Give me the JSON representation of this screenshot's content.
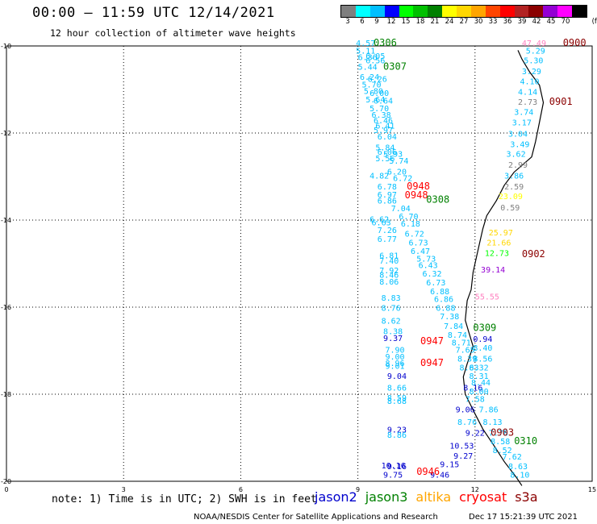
{
  "header": {
    "title": "00:00 – 11:59 UTC 12/14/2021",
    "subtitle": "12 hour collection of altimeter wave heights"
  },
  "legend": {
    "unit": "(ft)",
    "bins": [
      {
        "label": "3",
        "color": "#7f7f7f"
      },
      {
        "label": "6",
        "color": "#00ffff"
      },
      {
        "label": "9",
        "color": "#00bfff"
      },
      {
        "label": "12",
        "color": "#0000ff"
      },
      {
        "label": "15",
        "color": "#00ff00"
      },
      {
        "label": "18",
        "color": "#00c000"
      },
      {
        "label": "21",
        "color": "#008000"
      },
      {
        "label": "24",
        "color": "#ffff00"
      },
      {
        "label": "27",
        "color": "#ffd700"
      },
      {
        "label": "30",
        "color": "#ffa500"
      },
      {
        "label": "33",
        "color": "#ff4500"
      },
      {
        "label": "36",
        "color": "#ff0000"
      },
      {
        "label": "39",
        "color": "#b22222"
      },
      {
        "label": "42",
        "color": "#8b0000"
      },
      {
        "label": "45",
        "color": "#9400d3"
      },
      {
        "label": "70",
        "color": "#ff00ff"
      },
      {
        "label": "",
        "color": "#000000"
      }
    ]
  },
  "map": {
    "lon_ticks": [
      "0",
      "3",
      "6",
      "9",
      "12",
      "15"
    ],
    "lat_ticks": [
      "-10",
      "-12",
      "-14",
      "-16",
      "-18",
      "-20"
    ],
    "coast": [
      [
        13.1,
        -10.1
      ],
      [
        13.2,
        -10.3
      ],
      [
        13.4,
        -10.6
      ],
      [
        13.65,
        -10.9
      ],
      [
        13.75,
        -11.3
      ],
      [
        13.65,
        -11.75
      ],
      [
        13.55,
        -12.2
      ],
      [
        13.45,
        -12.55
      ],
      [
        13.0,
        -12.9
      ],
      [
        12.75,
        -13.2
      ],
      [
        12.55,
        -13.55
      ],
      [
        12.3,
        -13.9
      ],
      [
        12.2,
        -14.2
      ],
      [
        12.1,
        -14.6
      ],
      [
        11.95,
        -15.2
      ],
      [
        11.9,
        -15.6
      ],
      [
        11.8,
        -15.85
      ],
      [
        11.75,
        -16.3
      ],
      [
        11.85,
        -16.6
      ],
      [
        11.95,
        -16.9
      ],
      [
        11.8,
        -17.3
      ],
      [
        11.7,
        -17.6
      ],
      [
        11.75,
        -18.0
      ],
      [
        12.0,
        -18.45
      ],
      [
        12.2,
        -18.8
      ],
      [
        12.5,
        -19.2
      ],
      [
        12.75,
        -19.55
      ],
      [
        13.05,
        -19.9
      ],
      [
        13.2,
        -20.1
      ]
    ],
    "passes": [
      {
        "name": "0306",
        "color": "#008000",
        "lon": 9.4,
        "lat": -10.0
      },
      {
        "name": "0307",
        "color": "#008000",
        "lon": 9.65,
        "lat": -10.55
      },
      {
        "name": "0900",
        "color": "#8b0000",
        "lon": 14.25,
        "lat": -10.0
      },
      {
        "name": "0901",
        "color": "#8b0000",
        "lon": 13.9,
        "lat": -11.35
      },
      {
        "name": "0948",
        "color": "#ff0000",
        "lon": 10.25,
        "lat": -13.3
      },
      {
        "name": "0948",
        "color": "#ff0000",
        "lon": 10.2,
        "lat": -13.5
      },
      {
        "name": "0308",
        "color": "#008000",
        "lon": 10.75,
        "lat": -13.6
      },
      {
        "name": "0902",
        "color": "#8b0000",
        "lon": 13.2,
        "lat": -14.85
      },
      {
        "name": "0309",
        "color": "#008000",
        "lon": 11.95,
        "lat": -16.55
      },
      {
        "name": "0947",
        "color": "#ff0000",
        "lon": 10.6,
        "lat": -16.85
      },
      {
        "name": "0947",
        "color": "#ff0000",
        "lon": 10.6,
        "lat": -17.35
      },
      {
        "name": "0903",
        "color": "#8b0000",
        "lon": 12.4,
        "lat": -18.95
      },
      {
        "name": "0310",
        "color": "#008000",
        "lon": 13.0,
        "lat": -19.15
      },
      {
        "name": "0946",
        "color": "#ff0000",
        "lon": 10.5,
        "lat": -19.85
      }
    ],
    "obs": [
      {
        "v": "4.57",
        "c": "#00bfff",
        "lon": 8.95,
        "lat": -10.0
      },
      {
        "v": "5.11",
        "c": "#00bfff",
        "lon": 8.95,
        "lat": -10.18
      },
      {
        "v": "6.36",
        "c": "#00bfff",
        "lon": 9.0,
        "lat": -10.32
      },
      {
        "v": "6.05",
        "c": "#00bfff",
        "lon": 9.2,
        "lat": -10.3
      },
      {
        "v": "6.56",
        "c": "#00bfff",
        "lon": 9.2,
        "lat": -10.4
      },
      {
        "v": "5.44",
        "c": "#00bfff",
        "lon": 9.0,
        "lat": -10.55
      },
      {
        "v": "6.24",
        "c": "#00bfff",
        "lon": 9.05,
        "lat": -10.78
      },
      {
        "v": "6.26",
        "c": "#00bfff",
        "lon": 9.25,
        "lat": -10.82
      },
      {
        "v": "5.70",
        "c": "#00bfff",
        "lon": 9.1,
        "lat": -10.95
      },
      {
        "v": "5.80",
        "c": "#00bfff",
        "lon": 9.15,
        "lat": -11.1
      },
      {
        "v": "6.00",
        "c": "#00bfff",
        "lon": 9.3,
        "lat": -11.15
      },
      {
        "v": "5.64",
        "c": "#00bfff",
        "lon": 9.2,
        "lat": -11.3
      },
      {
        "v": "6.64",
        "c": "#00bfff",
        "lon": 9.4,
        "lat": -11.32
      },
      {
        "v": "5.70",
        "c": "#00bfff",
        "lon": 9.3,
        "lat": -11.5
      },
      {
        "v": "6.38",
        "c": "#00bfff",
        "lon": 9.35,
        "lat": -11.65
      },
      {
        "v": "6.46",
        "c": "#00bfff",
        "lon": 9.4,
        "lat": -11.78
      },
      {
        "v": "6.41",
        "c": "#00bfff",
        "lon": 9.45,
        "lat": -11.9
      },
      {
        "v": "5.97",
        "c": "#00bfff",
        "lon": 9.4,
        "lat": -12.0
      },
      {
        "v": "6.04",
        "c": "#00bfff",
        "lon": 9.5,
        "lat": -12.15
      },
      {
        "v": "5.84",
        "c": "#00bfff",
        "lon": 9.45,
        "lat": -12.4
      },
      {
        "v": "6.06",
        "c": "#00bfff",
        "lon": 9.5,
        "lat": -12.5
      },
      {
        "v": "5.93",
        "c": "#00bfff",
        "lon": 9.65,
        "lat": -12.55
      },
      {
        "v": "5.56",
        "c": "#00bfff",
        "lon": 9.45,
        "lat": -12.65
      },
      {
        "v": "5.74",
        "c": "#00bfff",
        "lon": 9.8,
        "lat": -12.7
      },
      {
        "v": "6.20",
        "c": "#00bfff",
        "lon": 9.75,
        "lat": -12.95
      },
      {
        "v": "4.82",
        "c": "#00bfff",
        "lon": 9.3,
        "lat": -13.05
      },
      {
        "v": "6.72",
        "c": "#00bfff",
        "lon": 9.9,
        "lat": -13.1
      },
      {
        "v": "6.78",
        "c": "#00bfff",
        "lon": 9.5,
        "lat": -13.3
      },
      {
        "v": "6.97",
        "c": "#00bfff",
        "lon": 9.5,
        "lat": -13.48
      },
      {
        "v": "6.86",
        "c": "#00bfff",
        "lon": 9.5,
        "lat": -13.62
      },
      {
        "v": "7.04",
        "c": "#00bfff",
        "lon": 9.85,
        "lat": -13.8
      },
      {
        "v": "6.70",
        "c": "#00bfff",
        "lon": 10.05,
        "lat": -13.98
      },
      {
        "v": "6.62",
        "c": "#00bfff",
        "lon": 9.3,
        "lat": -14.05
      },
      {
        "v": "6.63",
        "c": "#00bfff",
        "lon": 9.35,
        "lat": -14.12
      },
      {
        "v": "6.18",
        "c": "#00bfff",
        "lon": 10.1,
        "lat": -14.15
      },
      {
        "v": "7.26",
        "c": "#00bfff",
        "lon": 9.5,
        "lat": -14.3
      },
      {
        "v": "6.72",
        "c": "#00bfff",
        "lon": 10.2,
        "lat": -14.38
      },
      {
        "v": "6.77",
        "c": "#00bfff",
        "lon": 9.5,
        "lat": -14.5
      },
      {
        "v": "6.73",
        "c": "#00bfff",
        "lon": 10.3,
        "lat": -14.58
      },
      {
        "v": "6.47",
        "c": "#00bfff",
        "lon": 10.35,
        "lat": -14.78
      },
      {
        "v": "6.81",
        "c": "#00bfff",
        "lon": 9.55,
        "lat": -14.88
      },
      {
        "v": "5.73",
        "c": "#00bfff",
        "lon": 10.5,
        "lat": -14.95
      },
      {
        "v": "7.40",
        "c": "#00bfff",
        "lon": 9.55,
        "lat": -15.0
      },
      {
        "v": "6.43",
        "c": "#00bfff",
        "lon": 10.55,
        "lat": -15.1
      },
      {
        "v": "7.92",
        "c": "#00bfff",
        "lon": 9.55,
        "lat": -15.22
      },
      {
        "v": "6.32",
        "c": "#00bfff",
        "lon": 10.65,
        "lat": -15.3
      },
      {
        "v": "8.46",
        "c": "#00bfff",
        "lon": 9.55,
        "lat": -15.32
      },
      {
        "v": "8.06",
        "c": "#00bfff",
        "lon": 9.55,
        "lat": -15.48
      },
      {
        "v": "6.73",
        "c": "#00bfff",
        "lon": 10.75,
        "lat": -15.5
      },
      {
        "v": "6.88",
        "c": "#00bfff",
        "lon": 10.85,
        "lat": -15.7
      },
      {
        "v": "8.83",
        "c": "#00bfff",
        "lon": 9.6,
        "lat": -15.85
      },
      {
        "v": "6.86",
        "c": "#00bfff",
        "lon": 10.95,
        "lat": -15.88
      },
      {
        "v": "8.76",
        "c": "#00bfff",
        "lon": 9.6,
        "lat": -16.08
      },
      {
        "v": "6.88",
        "c": "#00bfff",
        "lon": 11.0,
        "lat": -16.08
      },
      {
        "v": "7.38",
        "c": "#00bfff",
        "lon": 11.1,
        "lat": -16.28
      },
      {
        "v": "8.62",
        "c": "#00bfff",
        "lon": 9.6,
        "lat": -16.38
      },
      {
        "v": "7.84",
        "c": "#00bfff",
        "lon": 11.2,
        "lat": -16.5
      },
      {
        "v": "8.38",
        "c": "#00bfff",
        "lon": 9.65,
        "lat": -16.62
      },
      {
        "v": "9.37",
        "c": "#0000cd",
        "lon": 9.65,
        "lat": -16.78
      },
      {
        "v": "8.74",
        "c": "#00bfff",
        "lon": 11.3,
        "lat": -16.7
      },
      {
        "v": "8.71",
        "c": "#00bfff",
        "lon": 11.4,
        "lat": -16.88
      },
      {
        "v": "0.94",
        "c": "#0000cd",
        "lon": 11.95,
        "lat": -16.8
      },
      {
        "v": "8.40",
        "c": "#00bfff",
        "lon": 11.95,
        "lat": -17.0
      },
      {
        "v": "7.90",
        "c": "#00bfff",
        "lon": 9.7,
        "lat": -17.05
      },
      {
        "v": "7.65",
        "c": "#00bfff",
        "lon": 11.5,
        "lat": -17.05
      },
      {
        "v": "9.00",
        "c": "#00bfff",
        "lon": 9.7,
        "lat": -17.2
      },
      {
        "v": "8.56",
        "c": "#00bfff",
        "lon": 11.95,
        "lat": -17.25
      },
      {
        "v": "8.39",
        "c": "#00bfff",
        "lon": 11.55,
        "lat": -17.25
      },
      {
        "v": "8.96",
        "c": "#00bfff",
        "lon": 9.7,
        "lat": -17.35
      },
      {
        "v": "9.01",
        "c": "#00bfff",
        "lon": 9.7,
        "lat": -17.42
      },
      {
        "v": "8.32",
        "c": "#00bfff",
        "lon": 11.85,
        "lat": -17.45
      },
      {
        "v": "8.63",
        "c": "#00bfff",
        "lon": 11.6,
        "lat": -17.45
      },
      {
        "v": "9.04",
        "c": "#0000cd",
        "lon": 9.75,
        "lat": -17.65
      },
      {
        "v": "8.31",
        "c": "#00bfff",
        "lon": 11.85,
        "lat": -17.65
      },
      {
        "v": "8.44",
        "c": "#00bfff",
        "lon": 11.9,
        "lat": -17.8
      },
      {
        "v": "8.66",
        "c": "#00bfff",
        "lon": 9.75,
        "lat": -17.92
      },
      {
        "v": "8.16",
        "c": "#0000cd",
        "lon": 11.7,
        "lat": -17.92
      },
      {
        "v": "8.00",
        "c": "#00bfff",
        "lon": 11.85,
        "lat": -18.0
      },
      {
        "v": "8.59",
        "c": "#00bfff",
        "lon": 9.75,
        "lat": -18.15
      },
      {
        "v": "8.68",
        "c": "#00bfff",
        "lon": 9.75,
        "lat": -18.22
      },
      {
        "v": "7.58",
        "c": "#00bfff",
        "lon": 11.75,
        "lat": -18.18
      },
      {
        "v": "9.06",
        "c": "#0000cd",
        "lon": 11.5,
        "lat": -18.42
      },
      {
        "v": "7.86",
        "c": "#00bfff",
        "lon": 12.1,
        "lat": -18.42
      },
      {
        "v": "8.76",
        "c": "#00bfff",
        "lon": 11.55,
        "lat": -18.7
      },
      {
        "v": "8.13",
        "c": "#00bfff",
        "lon": 12.2,
        "lat": -18.7
      },
      {
        "v": "9.23",
        "c": "#0000cd",
        "lon": 9.75,
        "lat": -18.88
      },
      {
        "v": "8.86",
        "c": "#00bfff",
        "lon": 9.75,
        "lat": -19.0
      },
      {
        "v": "9.22",
        "c": "#0000cd",
        "lon": 11.75,
        "lat": -18.95
      },
      {
        "v": "7.78",
        "c": "#00bfff",
        "lon": 12.35,
        "lat": -18.95
      },
      {
        "v": "8.58",
        "c": "#00bfff",
        "lon": 12.4,
        "lat": -19.15
      },
      {
        "v": "10.53",
        "c": "#0000cd",
        "lon": 11.35,
        "lat": -19.25
      },
      {
        "v": "8.52",
        "c": "#00bfff",
        "lon": 12.45,
        "lat": -19.35
      },
      {
        "v": "9.27",
        "c": "#0000cd",
        "lon": 11.45,
        "lat": -19.48
      },
      {
        "v": "7.62",
        "c": "#00bfff",
        "lon": 12.7,
        "lat": -19.5
      },
      {
        "v": "10.16",
        "c": "#0000cd",
        "lon": 9.6,
        "lat": -19.7
      },
      {
        "v": "9.16",
        "c": "#0000cd",
        "lon": 9.75,
        "lat": -19.72
      },
      {
        "v": "9.15",
        "c": "#0000cd",
        "lon": 11.1,
        "lat": -19.68
      },
      {
        "v": "8.63",
        "c": "#00bfff",
        "lon": 12.85,
        "lat": -19.72
      },
      {
        "v": "9.75",
        "c": "#0000cd",
        "lon": 9.65,
        "lat": -19.92
      },
      {
        "v": "9.46",
        "c": "#0000cd",
        "lon": 10.85,
        "lat": -19.92
      },
      {
        "v": "8.10",
        "c": "#00bfff",
        "lon": 12.9,
        "lat": -19.92
      },
      {
        "v": "47.49",
        "c": "#ff80c0",
        "lon": 13.2,
        "lat": -10.0
      },
      {
        "v": "5.29",
        "c": "#00bfff",
        "lon": 13.3,
        "lat": -10.18
      },
      {
        "v": "5.30",
        "c": "#00bfff",
        "lon": 13.25,
        "lat": -10.4
      },
      {
        "v": "3.29",
        "c": "#00bfff",
        "lon": 13.2,
        "lat": -10.65
      },
      {
        "v": "4.10",
        "c": "#00bfff",
        "lon": 13.15,
        "lat": -10.88
      },
      {
        "v": "4.14",
        "c": "#00bfff",
        "lon": 13.1,
        "lat": -11.12
      },
      {
        "v": "2.73",
        "c": "#7f7f7f",
        "lon": 13.1,
        "lat": -11.35
      },
      {
        "v": "3.74",
        "c": "#00bfff",
        "lon": 13.0,
        "lat": -11.58
      },
      {
        "v": "3.17",
        "c": "#00bfff",
        "lon": 12.95,
        "lat": -11.82
      },
      {
        "v": "3.04",
        "c": "#00bfff",
        "lon": 12.85,
        "lat": -12.08
      },
      {
        "v": "3.49",
        "c": "#00bfff",
        "lon": 12.9,
        "lat": -12.32
      },
      {
        "v": "3.62",
        "c": "#00bfff",
        "lon": 12.8,
        "lat": -12.55
      },
      {
        "v": "2.99",
        "c": "#7f7f7f",
        "lon": 12.85,
        "lat": -12.8
      },
      {
        "v": "3.86",
        "c": "#00bfff",
        "lon": 12.75,
        "lat": -13.05
      },
      {
        "v": "2.59",
        "c": "#7f7f7f",
        "lon": 12.75,
        "lat": -13.3
      },
      {
        "v": "23.09",
        "c": "#ffff00",
        "lon": 12.6,
        "lat": -13.52
      },
      {
        "v": "0.59",
        "c": "#7f7f7f",
        "lon": 12.65,
        "lat": -13.78
      },
      {
        "v": "25.97",
        "c": "#ffd700",
        "lon": 12.35,
        "lat": -14.35
      },
      {
        "v": "21.66",
        "c": "#ffd700",
        "lon": 12.3,
        "lat": -14.58
      },
      {
        "v": "12.73",
        "c": "#00ff00",
        "lon": 12.25,
        "lat": -14.82
      },
      {
        "v": "39.14",
        "c": "#9400d3",
        "lon": 12.15,
        "lat": -15.2
      },
      {
        "v": "55.55",
        "c": "#ff80c0",
        "lon": 12.0,
        "lat": -15.82
      }
    ]
  },
  "footer": {
    "note": "note:  1) Time is in UTC; 2) SWH is in feet",
    "satellites": [
      {
        "name": "jason2",
        "color": "#0000cd"
      },
      {
        "name": "jason3",
        "color": "#008000"
      },
      {
        "name": "altika",
        "color": "#ffa500"
      },
      {
        "name": "cryosat",
        "color": "#ff0000"
      },
      {
        "name": "s3a",
        "color": "#8b0000"
      }
    ],
    "credit": "NOAA/NESDIS Center for Satellite Applications and Research",
    "timestamp": "Dec 17 15:21:39 UTC 2021"
  }
}
